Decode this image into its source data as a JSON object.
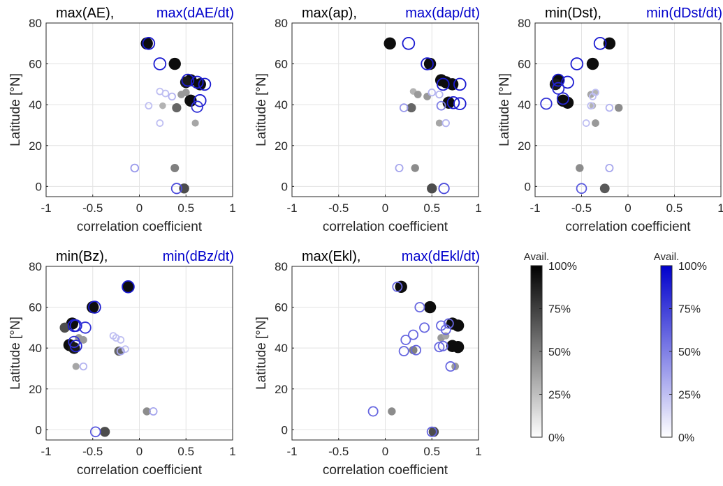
{
  "chart_data": [
    {
      "type": "scatter",
      "xlabel": "correlation coefficient",
      "ylabel": "Latitude [°N]",
      "xlim": [
        -1,
        1
      ],
      "ylim": [
        -5,
        80
      ],
      "xticks": [
        -1,
        -0.5,
        0,
        0.5,
        1
      ],
      "yticks": [
        0,
        20,
        40,
        60,
        80
      ],
      "grid": true,
      "series": [
        {
          "name": "max(AE),",
          "color": "#000000",
          "filled": true,
          "x": [
            0.08,
            0.38,
            0.55,
            0.5,
            0.65,
            0.55,
            0.5,
            0.45,
            0.4,
            0.25,
            0.6,
            0.38,
            0.48
          ],
          "y": [
            70,
            60,
            52,
            51,
            50,
            42,
            46,
            45,
            38.5,
            39.5,
            31,
            9,
            -1
          ],
          "size": [
            95,
            95,
            95,
            90,
            95,
            95,
            40,
            40,
            60,
            30,
            35,
            50,
            70
          ]
        },
        {
          "name": "max(dAE/dt)",
          "color": "#0000cc",
          "filled": false,
          "x": [
            0.1,
            0.22,
            0.52,
            0.62,
            0.7,
            0.65,
            0.62,
            0.22,
            0.28,
            0.35,
            0.1,
            0.22,
            -0.05,
            0.4
          ],
          "y": [
            70,
            60,
            52,
            51,
            50,
            42,
            39,
            46.5,
            45.5,
            44,
            39.5,
            31,
            9,
            -1
          ],
          "size": [
            90,
            90,
            90,
            90,
            90,
            90,
            80,
            25,
            25,
            30,
            25,
            25,
            40,
            70
          ]
        }
      ]
    },
    {
      "type": "scatter",
      "xlabel": "correlation coefficient",
      "ylabel": "Latitude [°N]",
      "xlim": [
        -1,
        1
      ],
      "ylim": [
        -5,
        80
      ],
      "xticks": [
        -1,
        -0.5,
        0,
        0.5,
        1
      ],
      "yticks": [
        0,
        20,
        40,
        60,
        80
      ],
      "grid": true,
      "series": [
        {
          "name": "max(ap),",
          "color": "#000000",
          "filled": true,
          "x": [
            0.05,
            0.48,
            0.6,
            0.65,
            0.72,
            0.68,
            0.45,
            0.3,
            0.35,
            0.28,
            0.58,
            0.32,
            0.5
          ],
          "y": [
            70,
            60,
            52,
            51,
            50,
            41,
            44,
            46.5,
            45,
            38.5,
            31,
            9,
            -1
          ],
          "size": [
            95,
            95,
            95,
            95,
            95,
            95,
            40,
            30,
            40,
            60,
            35,
            45,
            70
          ]
        },
        {
          "name": "max(dap/dt)",
          "color": "#0000cc",
          "filled": false,
          "x": [
            0.25,
            0.45,
            0.62,
            0.8,
            0.73,
            0.8,
            0.6,
            0.5,
            0.58,
            0.2,
            0.65,
            0.15,
            0.63
          ],
          "y": [
            70,
            60,
            50,
            50,
            41,
            40.5,
            39.5,
            46,
            45,
            38.5,
            31,
            9,
            -1
          ],
          "size": [
            90,
            90,
            90,
            90,
            90,
            90,
            50,
            30,
            30,
            40,
            30,
            35,
            70
          ]
        }
      ]
    },
    {
      "type": "scatter",
      "xlabel": "correlation coefficient",
      "ylabel": "Latitude [°N]",
      "xlim": [
        -1,
        1
      ],
      "ylim": [
        -5,
        80
      ],
      "xticks": [
        -1,
        -0.5,
        0,
        0.5,
        1
      ],
      "yticks": [
        0,
        20,
        40,
        60,
        80
      ],
      "grid": true,
      "series": [
        {
          "name": "min(Dst),",
          "color": "#000000",
          "filled": true,
          "x": [
            -0.2,
            -0.38,
            -0.75,
            -0.78,
            -0.7,
            -0.65,
            -0.4,
            -0.35,
            -0.38,
            -0.1,
            -0.35,
            -0.52,
            -0.25
          ],
          "y": [
            70,
            60,
            52,
            50,
            42,
            41,
            45,
            46,
            39.5,
            38.5,
            31,
            9,
            -1
          ],
          "size": [
            95,
            95,
            95,
            90,
            95,
            95,
            35,
            30,
            30,
            45,
            40,
            45,
            65
          ]
        },
        {
          "name": "min(dDst/dt)",
          "color": "#0000cc",
          "filled": false,
          "x": [
            -0.3,
            -0.55,
            -0.75,
            -0.65,
            -0.75,
            -0.7,
            -0.88,
            -0.35,
            -0.38,
            -0.4,
            -0.45,
            -0.2,
            -0.2,
            -0.5
          ],
          "y": [
            70,
            60,
            52,
            51,
            48,
            43,
            40.5,
            46,
            44,
            39.5,
            31,
            38.5,
            9,
            -1
          ],
          "size": [
            90,
            90,
            90,
            90,
            85,
            85,
            80,
            25,
            25,
            25,
            25,
            30,
            35,
            65
          ]
        }
      ]
    },
    {
      "type": "scatter",
      "xlabel": "correlation coefficient",
      "ylabel": "Latitude [°N]",
      "xlim": [
        -1,
        1
      ],
      "ylim": [
        -5,
        80
      ],
      "xticks": [
        -1,
        -0.5,
        0,
        0.5,
        1
      ],
      "yticks": [
        0,
        20,
        40,
        60,
        80
      ],
      "grid": true,
      "series": [
        {
          "name": "min(Bz),",
          "color": "#000000",
          "filled": true,
          "x": [
            -0.12,
            -0.5,
            -0.72,
            -0.8,
            -0.75,
            -0.7,
            -0.65,
            -0.6,
            -0.22,
            -0.68,
            0.08,
            -0.37
          ],
          "y": [
            70,
            60,
            52,
            50,
            41.5,
            40,
            45,
            44,
            38.5,
            31,
            9,
            -1
          ],
          "size": [
            95,
            95,
            95,
            70,
            95,
            90,
            40,
            40,
            60,
            35,
            45,
            70
          ]
        },
        {
          "name": "min(dBz/dt)",
          "color": "#0000cc",
          "filled": false,
          "x": [
            -0.12,
            -0.48,
            -0.7,
            -0.68,
            -0.58,
            -0.68,
            -0.7,
            -0.28,
            -0.25,
            -0.2,
            -0.15,
            -0.2,
            -0.6,
            0.15,
            -0.47
          ],
          "y": [
            70,
            60,
            51,
            51,
            50,
            41,
            43,
            46,
            45,
            44,
            39.5,
            38.5,
            31,
            9,
            -1
          ],
          "size": [
            90,
            90,
            90,
            85,
            80,
            85,
            80,
            25,
            25,
            25,
            25,
            35,
            30,
            35,
            65
          ]
        }
      ]
    },
    {
      "type": "scatter",
      "xlabel": "correlation coefficient",
      "ylabel": "Latitude [°N]",
      "xlim": [
        -1,
        1
      ],
      "ylim": [
        -5,
        80
      ],
      "xticks": [
        -1,
        -0.5,
        0,
        0.5,
        1
      ],
      "yticks": [
        0,
        20,
        40,
        60,
        80
      ],
      "grid": true,
      "series": [
        {
          "name": "max(Ekl),",
          "color": "#000000",
          "filled": true,
          "x": [
            0.17,
            0.48,
            0.72,
            0.78,
            0.6,
            0.72,
            0.78,
            0.3,
            0.65,
            0.75,
            0.07,
            0.52
          ],
          "y": [
            70,
            60,
            52,
            51,
            45,
            41,
            40.5,
            39,
            46,
            31,
            9,
            -1
          ],
          "size": [
            95,
            95,
            95,
            95,
            40,
            95,
            95,
            50,
            35,
            40,
            45,
            70
          ]
        },
        {
          "name": "max(dEkl/dt)",
          "color": "#0000cc",
          "filled": false,
          "x": [
            0.13,
            0.37,
            0.42,
            0.6,
            0.68,
            0.62,
            0.58,
            0.22,
            0.3,
            0.33,
            0.2,
            0.7,
            -0.13,
            0.5,
            0.65
          ],
          "y": [
            70,
            60,
            50,
            51,
            52,
            41,
            40.5,
            44,
            46.5,
            39,
            38.5,
            31,
            9,
            -1,
            49
          ]
        }
      ]
    },
    {
      "type": "colorbar",
      "title": "Avail.",
      "color": "#000000",
      "ylim": [
        0,
        100
      ],
      "yticks": [
        {
          "value": 0,
          "label": "0%"
        },
        {
          "value": 25,
          "label": "25%"
        },
        {
          "value": 50,
          "label": "50%"
        },
        {
          "value": 75,
          "label": "75%"
        },
        {
          "value": 100,
          "label": "100%"
        }
      ]
    },
    {
      "type": "colorbar",
      "title": "Avail.",
      "color": "#0000cc",
      "ylim": [
        0,
        100
      ],
      "yticks": [
        {
          "value": 0,
          "label": "0%"
        },
        {
          "value": 25,
          "label": "25%"
        },
        {
          "value": 50,
          "label": "50%"
        },
        {
          "value": 75,
          "label": "75%"
        },
        {
          "value": 100,
          "label": "100%"
        }
      ]
    }
  ]
}
